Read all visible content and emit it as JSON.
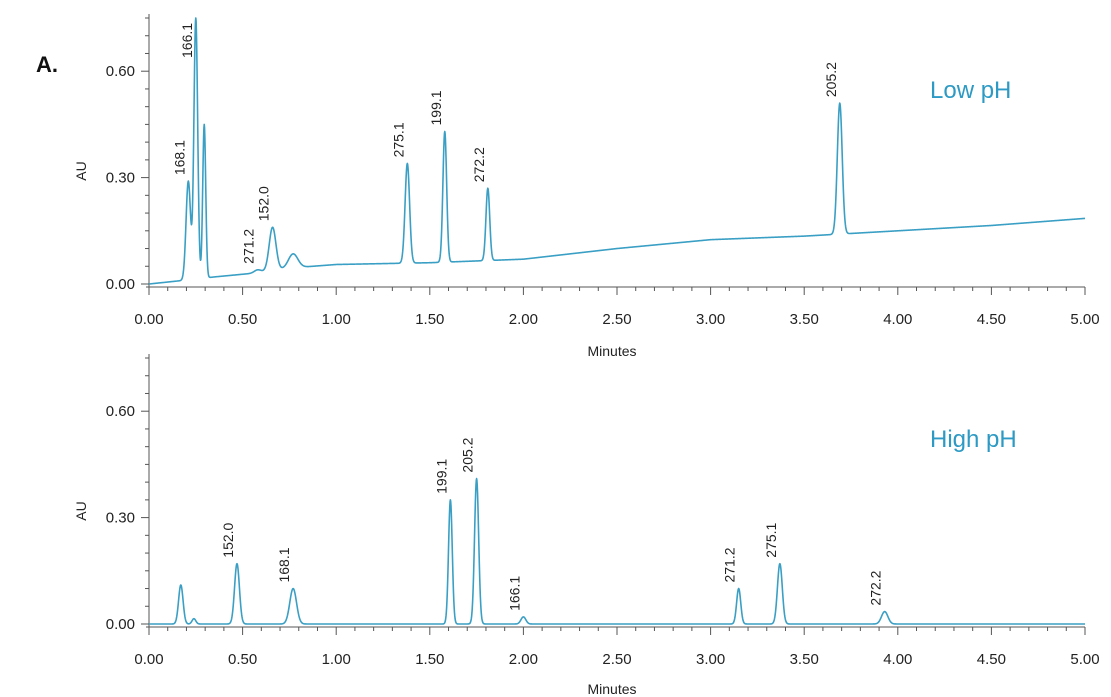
{
  "panel_letter": "A.",
  "colors": {
    "trace": "#3a9fc4",
    "condition_label": "#2c9ac4",
    "axis": "#555555"
  },
  "chart_data": [
    {
      "type": "line",
      "title": "",
      "condition_label": "Low pH",
      "xlabel": "Minutes",
      "ylabel": "AU",
      "xlim": [
        0,
        5
      ],
      "ylim": [
        0,
        0.75
      ],
      "xticks": [
        "0.00",
        "0.50",
        "1.00",
        "1.50",
        "2.00",
        "2.50",
        "3.00",
        "3.50",
        "4.00",
        "4.50",
        "5.00"
      ],
      "yticks": [
        "0.00",
        "0.30",
        "0.60"
      ],
      "baseline": [
        [
          0,
          0.0
        ],
        [
          0.18,
          0.01
        ],
        [
          0.35,
          0.02
        ],
        [
          0.55,
          0.03
        ],
        [
          0.75,
          0.045
        ],
        [
          1.0,
          0.055
        ],
        [
          1.5,
          0.06
        ],
        [
          2.0,
          0.07
        ],
        [
          2.5,
          0.1
        ],
        [
          3.0,
          0.125
        ],
        [
          3.5,
          0.135
        ],
        [
          4.0,
          0.15
        ],
        [
          4.5,
          0.165
        ],
        [
          5.0,
          0.185
        ]
      ],
      "peaks": [
        {
          "label": "168.1",
          "x": 0.21,
          "y": 0.29,
          "w": 0.012
        },
        {
          "label": "166.1",
          "x": 0.25,
          "y": 0.75,
          "w": 0.01
        },
        {
          "label": "",
          "x": 0.295,
          "y": 0.45,
          "w": 0.008
        },
        {
          "label": "271.2",
          "x": 0.58,
          "y": 0.04,
          "w": 0.018
        },
        {
          "label": "152.0",
          "x": 0.66,
          "y": 0.16,
          "w": 0.018
        },
        {
          "label": "",
          "x": 0.77,
          "y": 0.085,
          "w": 0.025
        },
        {
          "label": "275.1",
          "x": 1.38,
          "y": 0.34,
          "w": 0.012
        },
        {
          "label": "199.1",
          "x": 1.58,
          "y": 0.43,
          "w": 0.01
        },
        {
          "label": "272.2",
          "x": 1.81,
          "y": 0.27,
          "w": 0.01
        },
        {
          "label": "205.2",
          "x": 3.69,
          "y": 0.51,
          "w": 0.013
        }
      ]
    },
    {
      "type": "line",
      "title": "",
      "condition_label": "High pH",
      "xlabel": "Minutes",
      "ylabel": "AU",
      "xlim": [
        0,
        5
      ],
      "ylim": [
        0,
        0.75
      ],
      "xticks": [
        "0.00",
        "0.50",
        "1.00",
        "1.50",
        "2.00",
        "2.50",
        "3.00",
        "3.50",
        "4.00",
        "4.50",
        "5.00"
      ],
      "yticks": [
        "0.00",
        "0.30",
        "0.60"
      ],
      "baseline": [
        [
          0,
          0.0
        ],
        [
          5.0,
          0.0
        ]
      ],
      "peaks": [
        {
          "label": "",
          "x": 0.17,
          "y": 0.11,
          "w": 0.012
        },
        {
          "label": "",
          "x": 0.24,
          "y": 0.015,
          "w": 0.01
        },
        {
          "label": "152.0",
          "x": 0.47,
          "y": 0.17,
          "w": 0.013
        },
        {
          "label": "168.1",
          "x": 0.77,
          "y": 0.1,
          "w": 0.018
        },
        {
          "label": "199.1",
          "x": 1.61,
          "y": 0.35,
          "w": 0.01
        },
        {
          "label": "205.2",
          "x": 1.75,
          "y": 0.41,
          "w": 0.011
        },
        {
          "label": "166.1",
          "x": 2.0,
          "y": 0.02,
          "w": 0.013
        },
        {
          "label": "271.2",
          "x": 3.15,
          "y": 0.1,
          "w": 0.011
        },
        {
          "label": "275.1",
          "x": 3.37,
          "y": 0.17,
          "w": 0.013
        },
        {
          "label": "272.2",
          "x": 3.93,
          "y": 0.035,
          "w": 0.017
        }
      ]
    }
  ]
}
